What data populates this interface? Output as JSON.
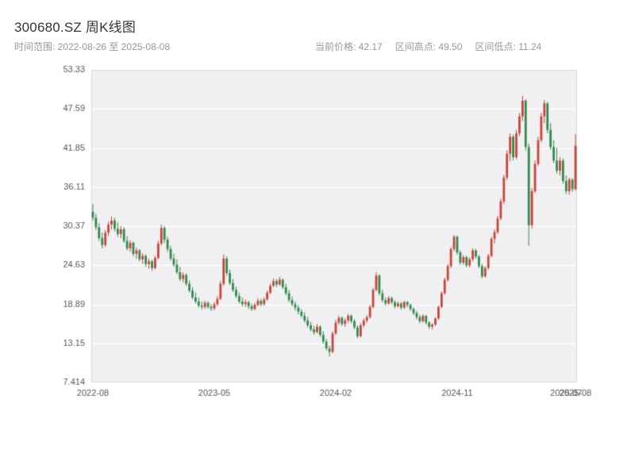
{
  "header": {
    "title": "300680.SZ 周K线图",
    "time_range": "时间范围: 2022-08-26 至 2025-08-08",
    "stats": [
      "当前价格: 42.17",
      "区间高点: 49.50",
      "区间低点: 11.24"
    ]
  },
  "chart_data": {
    "type": "candlestick",
    "title": "300680.SZ 周K线图",
    "symbol": "300680.SZ",
    "interval": "weekly",
    "current_price": 42.17,
    "range_high": 49.5,
    "range_low": 11.24,
    "ylim": [
      7.414,
      53.33
    ],
    "grid": true,
    "plot_bg": "#f0f0f2",
    "grid_color": "#ffffff",
    "border_color": "#d9d9de",
    "tick_color": "#54565c",
    "up_color": "#c6453d",
    "down_color": "#35894d",
    "y_tick_labels": [
      "53.33",
      "47.59",
      "41.85",
      "36.11",
      "30.37",
      "24.63",
      "18.89",
      "13.15",
      "7.414"
    ],
    "x_ticks": [
      {
        "label": "2022-08",
        "index": 0
      },
      {
        "label": "2023-05",
        "index": 39
      },
      {
        "label": "2024-02",
        "index": 78
      },
      {
        "label": "2024-11",
        "index": 117
      },
      {
        "label": "2025-07",
        "index": 152
      },
      {
        "label": "2025-08",
        "index": 155
      }
    ],
    "candles": [
      [
        32.5,
        33.6,
        31.2,
        31.6
      ],
      [
        31.6,
        32.2,
        29.8,
        30.2
      ],
      [
        30.2,
        30.8,
        28.2,
        28.6
      ],
      [
        28.6,
        29.4,
        27.1,
        27.6
      ],
      [
        27.6,
        29.8,
        27.3,
        29.4
      ],
      [
        29.4,
        31.0,
        28.9,
        30.6
      ],
      [
        30.6,
        31.8,
        29.9,
        31.2
      ],
      [
        31.2,
        31.6,
        29.6,
        30.0
      ],
      [
        30.0,
        30.9,
        28.8,
        29.2
      ],
      [
        29.2,
        30.4,
        28.6,
        29.9
      ],
      [
        29.9,
        30.2,
        27.9,
        28.2
      ],
      [
        28.2,
        28.9,
        26.8,
        27.1
      ],
      [
        27.1,
        28.3,
        26.6,
        27.9
      ],
      [
        27.9,
        28.1,
        25.9,
        26.3
      ],
      [
        26.3,
        27.2,
        25.6,
        26.8
      ],
      [
        26.8,
        27.0,
        25.2,
        25.5
      ],
      [
        25.5,
        26.4,
        24.8,
        26.0
      ],
      [
        26.0,
        26.2,
        24.4,
        24.8
      ],
      [
        24.8,
        25.6,
        24.1,
        25.2
      ],
      [
        25.2,
        25.4,
        23.8,
        24.2
      ],
      [
        24.2,
        26.0,
        24.0,
        25.7
      ],
      [
        25.7,
        28.2,
        25.5,
        27.8
      ],
      [
        27.8,
        30.6,
        27.5,
        30.1
      ],
      [
        30.1,
        30.4,
        27.9,
        28.4
      ],
      [
        28.4,
        28.8,
        26.6,
        27.0
      ],
      [
        27.0,
        27.5,
        25.3,
        25.6
      ],
      [
        25.6,
        26.3,
        24.4,
        24.7
      ],
      [
        24.7,
        25.5,
        23.3,
        23.6
      ],
      [
        23.6,
        24.4,
        22.3,
        22.6
      ],
      [
        22.6,
        23.6,
        22.1,
        23.2
      ],
      [
        23.2,
        23.4,
        21.6,
        21.9
      ],
      [
        21.9,
        22.4,
        20.6,
        20.9
      ],
      [
        20.9,
        21.4,
        19.6,
        19.9
      ],
      [
        19.9,
        20.6,
        19.0,
        19.3
      ],
      [
        19.3,
        19.9,
        18.4,
        18.7
      ],
      [
        18.7,
        19.3,
        18.1,
        18.5
      ],
      [
        18.5,
        19.4,
        18.2,
        19.1
      ],
      [
        19.1,
        19.3,
        18.2,
        18.5
      ],
      [
        18.5,
        18.9,
        17.9,
        18.3
      ],
      [
        18.3,
        19.2,
        18.0,
        18.9
      ],
      [
        18.9,
        20.1,
        18.6,
        19.7
      ],
      [
        19.7,
        22.3,
        19.5,
        21.9
      ],
      [
        21.9,
        26.2,
        21.6,
        25.6
      ],
      [
        25.6,
        25.9,
        23.1,
        23.5
      ],
      [
        23.5,
        24.0,
        21.7,
        22.0
      ],
      [
        22.0,
        22.6,
        20.7,
        21.0
      ],
      [
        21.0,
        21.5,
        19.8,
        20.1
      ],
      [
        20.1,
        20.6,
        19.0,
        19.3
      ],
      [
        19.3,
        19.9,
        18.6,
        18.9
      ],
      [
        18.9,
        19.6,
        18.5,
        19.2
      ],
      [
        19.2,
        19.4,
        18.2,
        18.6
      ],
      [
        18.6,
        19.0,
        17.9,
        18.2
      ],
      [
        18.2,
        19.1,
        18.0,
        18.8
      ],
      [
        18.8,
        19.8,
        18.6,
        19.4
      ],
      [
        19.4,
        19.7,
        18.6,
        18.9
      ],
      [
        18.9,
        19.9,
        18.7,
        19.6
      ],
      [
        19.6,
        20.9,
        19.4,
        20.6
      ],
      [
        20.6,
        21.9,
        20.4,
        21.6
      ],
      [
        21.6,
        22.7,
        21.4,
        22.3
      ],
      [
        22.3,
        22.6,
        21.4,
        21.8
      ],
      [
        21.8,
        22.9,
        21.6,
        22.5
      ],
      [
        22.5,
        22.7,
        21.1,
        21.4
      ],
      [
        21.4,
        21.9,
        20.2,
        20.5
      ],
      [
        20.5,
        21.0,
        19.2,
        19.5
      ],
      [
        19.5,
        20.0,
        18.6,
        18.9
      ],
      [
        18.9,
        19.3,
        18.0,
        18.4
      ],
      [
        18.4,
        18.8,
        17.4,
        17.8
      ],
      [
        17.8,
        18.2,
        16.9,
        17.2
      ],
      [
        17.2,
        17.7,
        16.2,
        16.5
      ],
      [
        16.5,
        17.0,
        15.5,
        15.8
      ],
      [
        15.8,
        16.3,
        14.9,
        15.2
      ],
      [
        15.2,
        15.7,
        14.4,
        14.8
      ],
      [
        14.8,
        16.0,
        14.6,
        15.6
      ],
      [
        15.6,
        15.8,
        14.1,
        14.4
      ],
      [
        14.4,
        14.9,
        13.1,
        13.4
      ],
      [
        13.4,
        13.8,
        12.1,
        12.4
      ],
      [
        12.4,
        12.8,
        11.24,
        11.9
      ],
      [
        11.9,
        14.9,
        11.7,
        14.6
      ],
      [
        14.6,
        16.6,
        14.4,
        16.2
      ],
      [
        16.2,
        17.2,
        15.9,
        16.9
      ],
      [
        16.9,
        17.1,
        15.7,
        16.0
      ],
      [
        16.0,
        16.8,
        15.6,
        16.5
      ],
      [
        16.5,
        17.5,
        16.2,
        17.2
      ],
      [
        17.2,
        17.4,
        16.1,
        16.4
      ],
      [
        16.4,
        16.7,
        15.2,
        15.5
      ],
      [
        15.5,
        15.8,
        13.9,
        14.2
      ],
      [
        14.2,
        16.1,
        14.0,
        15.8
      ],
      [
        15.8,
        16.8,
        15.5,
        16.5
      ],
      [
        16.5,
        17.3,
        16.2,
        17.0
      ],
      [
        17.0,
        18.8,
        16.8,
        18.5
      ],
      [
        18.5,
        21.3,
        18.3,
        21.0
      ],
      [
        21.0,
        23.6,
        20.8,
        23.1
      ],
      [
        23.1,
        23.3,
        20.2,
        20.5
      ],
      [
        20.5,
        21.0,
        19.2,
        19.5
      ],
      [
        19.5,
        19.9,
        18.7,
        19.0
      ],
      [
        19.0,
        20.1,
        18.8,
        19.8
      ],
      [
        19.8,
        20.0,
        18.9,
        19.2
      ],
      [
        19.2,
        19.5,
        18.3,
        18.6
      ],
      [
        18.6,
        19.3,
        18.4,
        19.0
      ],
      [
        19.0,
        19.2,
        18.1,
        18.4
      ],
      [
        18.4,
        19.4,
        18.2,
        19.2
      ],
      [
        19.2,
        19.4,
        18.5,
        18.8
      ],
      [
        18.8,
        19.0,
        17.9,
        18.2
      ],
      [
        18.2,
        18.4,
        17.3,
        17.6
      ],
      [
        17.6,
        17.9,
        16.7,
        17.0
      ],
      [
        17.0,
        17.3,
        16.1,
        16.4
      ],
      [
        16.4,
        17.4,
        16.2,
        17.2
      ],
      [
        17.2,
        17.3,
        15.9,
        16.2
      ],
      [
        16.2,
        16.4,
        15.3,
        15.6
      ],
      [
        15.6,
        16.1,
        15.2,
        15.9
      ],
      [
        15.9,
        17.0,
        15.7,
        16.8
      ],
      [
        16.8,
        18.7,
        16.6,
        18.5
      ],
      [
        18.5,
        20.8,
        18.3,
        20.5
      ],
      [
        20.5,
        22.8,
        20.3,
        22.5
      ],
      [
        22.5,
        24.8,
        22.2,
        24.5
      ],
      [
        24.5,
        27.3,
        24.2,
        27.0
      ],
      [
        27.0,
        29.1,
        26.7,
        28.8
      ],
      [
        28.8,
        29.0,
        26.2,
        26.5
      ],
      [
        26.5,
        26.8,
        24.7,
        25.0
      ],
      [
        25.0,
        26.1,
        24.7,
        25.8
      ],
      [
        25.8,
        26.0,
        24.3,
        24.6
      ],
      [
        24.6,
        25.8,
        24.3,
        25.5
      ],
      [
        25.5,
        27.1,
        25.2,
        26.8
      ],
      [
        26.8,
        27.0,
        25.6,
        25.9
      ],
      [
        25.9,
        26.1,
        24.2,
        24.5
      ],
      [
        24.5,
        24.8,
        22.7,
        23.0
      ],
      [
        23.0,
        24.5,
        22.8,
        24.2
      ],
      [
        24.2,
        26.3,
        24.0,
        26.0
      ],
      [
        26.0,
        28.8,
        25.8,
        28.5
      ],
      [
        28.5,
        29.9,
        27.8,
        29.5
      ],
      [
        29.5,
        31.9,
        29.2,
        31.5
      ],
      [
        31.5,
        34.4,
        31.2,
        34.0
      ],
      [
        34.0,
        37.9,
        33.6,
        37.5
      ],
      [
        37.5,
        41.5,
        37.1,
        41.0
      ],
      [
        41.0,
        44.0,
        39.9,
        43.5
      ],
      [
        43.5,
        43.8,
        40.0,
        40.5
      ],
      [
        40.5,
        44.5,
        40.2,
        44.0
      ],
      [
        44.0,
        47.0,
        43.6,
        46.5
      ],
      [
        46.5,
        49.5,
        45.8,
        48.8
      ],
      [
        48.8,
        49.0,
        41.5,
        42.0
      ],
      [
        42.0,
        42.5,
        27.5,
        30.5
      ],
      [
        30.5,
        36.0,
        30.0,
        35.5
      ],
      [
        35.5,
        40.0,
        35.2,
        39.5
      ],
      [
        39.5,
        43.5,
        39.2,
        43.0
      ],
      [
        43.0,
        47.0,
        42.7,
        46.5
      ],
      [
        46.5,
        48.9,
        45.5,
        48.4
      ],
      [
        48.4,
        48.6,
        44.0,
        44.5
      ],
      [
        44.5,
        45.5,
        41.6,
        42.0
      ],
      [
        42.0,
        43.0,
        39.6,
        40.0
      ],
      [
        40.0,
        41.9,
        38.1,
        38.5
      ],
      [
        38.5,
        40.5,
        37.8,
        40.0
      ],
      [
        40.0,
        40.3,
        36.6,
        37.0
      ],
      [
        37.0,
        37.8,
        35.1,
        35.5
      ],
      [
        35.5,
        37.5,
        35.0,
        37.2
      ],
      [
        37.2,
        37.4,
        35.4,
        35.8
      ],
      [
        35.8,
        43.9,
        35.6,
        42.17
      ]
    ]
  }
}
